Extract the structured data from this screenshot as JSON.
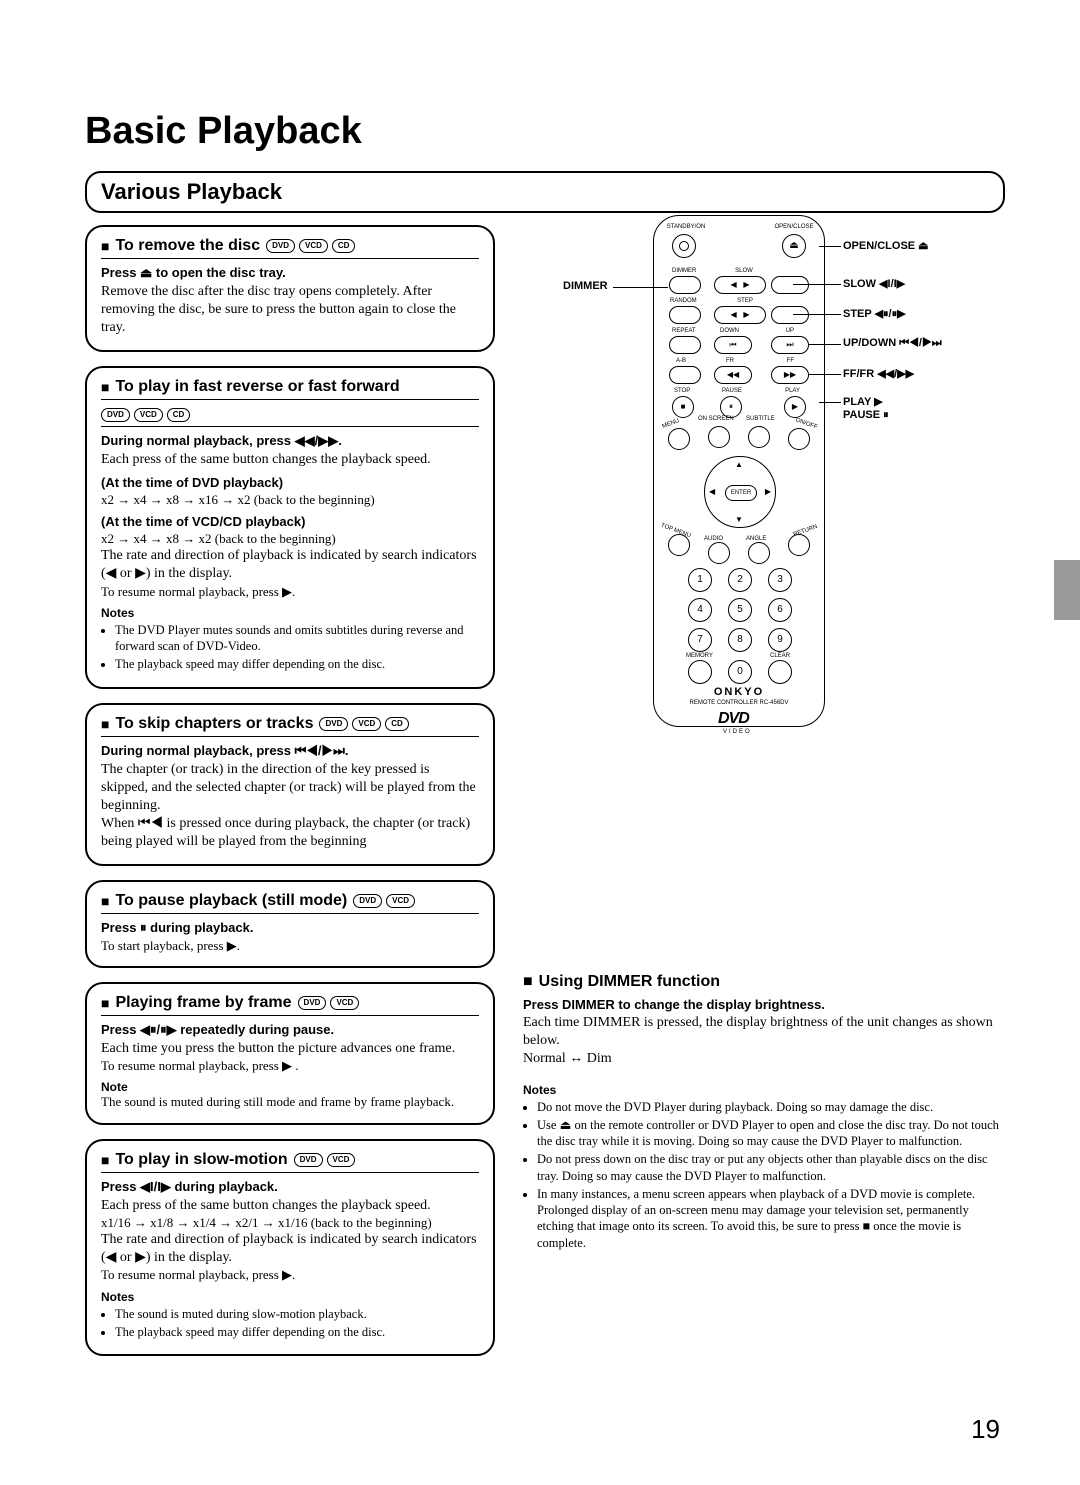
{
  "pageTitle": "Basic Playback",
  "sectionHeader": "Various Playback",
  "pageNumber": "19",
  "discBadges": {
    "dvd": "DVD",
    "vcd": "VCD",
    "cd": "CD"
  },
  "leftSections": [
    {
      "title": "To remove the disc",
      "badges": [
        "DVD",
        "VCD",
        "CD"
      ],
      "blocks": [
        {
          "type": "bold",
          "text": "Press ⏏ to open the disc tray."
        },
        {
          "type": "body",
          "text": "Remove the disc after the disc tray opens completely. After removing the disc, be sure to press the button again to close the tray."
        }
      ]
    },
    {
      "title": "To play in fast reverse or fast forward",
      "badgesBelow": [
        "DVD",
        "VCD",
        "CD"
      ],
      "blocks": [
        {
          "type": "bold",
          "text": "During normal playback, press ◀◀/▶▶."
        },
        {
          "type": "body",
          "text": "Each press of the same button changes the playback speed."
        },
        {
          "type": "bold",
          "text": "(At the time of DVD playback)"
        },
        {
          "type": "small",
          "text": "x2 → x4 → x8 → x16 → x2 (back to the beginning)"
        },
        {
          "type": "bold",
          "text": "(At the time of VCD/CD playback)"
        },
        {
          "type": "small",
          "text": "x2 → x4 → x8 → x2 (back to the beginning)"
        },
        {
          "type": "body",
          "text": "The rate and direction of playback is indicated by search indicators (◀ or ▶) in the display."
        },
        {
          "type": "small",
          "text": "To resume normal playback, press ▶."
        },
        {
          "type": "notesTitle",
          "text": "Notes"
        },
        {
          "type": "notes",
          "items": [
            "The DVD Player mutes sounds and omits subtitles during reverse and forward scan of DVD-Video.",
            "The playback speed may differ depending on the disc."
          ]
        }
      ]
    },
    {
      "title": "To skip chapters or tracks",
      "badges": [
        "DVD",
        "VCD",
        "CD"
      ],
      "blocks": [
        {
          "type": "bold",
          "text": "During normal playback, press ⏮◀/▶⏭."
        },
        {
          "type": "body",
          "text": "The chapter (or track) in the direction of the key pressed is skipped, and the selected chapter (or track) will be played from the beginning."
        },
        {
          "type": "body",
          "text": "When ⏮◀ is pressed once during playback, the chapter (or track) being played will be played from the beginning"
        }
      ]
    },
    {
      "title": "To pause playback (still mode)",
      "badges": [
        "DVD",
        "VCD"
      ],
      "blocks": [
        {
          "type": "bold",
          "text": "Press ⏸ during playback."
        },
        {
          "type": "small",
          "text": "To start playback, press ▶."
        }
      ]
    },
    {
      "title": "Playing frame by frame",
      "badges": [
        "DVD",
        "VCD"
      ],
      "blocks": [
        {
          "type": "bold",
          "text": "Press ◀⏸/⏸▶ repeatedly during pause."
        },
        {
          "type": "body",
          "text": "Each time you press the button the picture advances one frame."
        },
        {
          "type": "small",
          "text": "To resume normal playback, press ▶ ."
        },
        {
          "type": "notesTitle",
          "text": "Note"
        },
        {
          "type": "small",
          "text": "The sound is muted during still mode and frame by frame playback."
        }
      ]
    },
    {
      "title": "To play in slow-motion",
      "badges": [
        "DVD",
        "VCD"
      ],
      "blocks": [
        {
          "type": "bold",
          "text": "Press ◀I/I▶ during playback."
        },
        {
          "type": "body",
          "text": "Each press of the same button changes the playback speed."
        },
        {
          "type": "small",
          "text": "x1/16 → x1/8 → x1/4 → x2/1 → x1/16 (back to the beginning)"
        },
        {
          "type": "body",
          "text": "The rate and direction of playback is indicated by search indicators (◀ or ▶) in the display."
        },
        {
          "type": "small",
          "text": "To resume normal playback, press ▶."
        },
        {
          "type": "notesTitle",
          "text": "Notes"
        },
        {
          "type": "notes",
          "items": [
            "The sound is muted during slow-motion playback.",
            "The playback speed may differ depending on the disc."
          ]
        }
      ]
    }
  ],
  "remote": {
    "brand": "ONKYO",
    "model": "REMOTE CONTROLLER RC-456DV",
    "logo": "DVD",
    "logoSub": "VIDEO",
    "topLabels": {
      "standby": "STANDBY/ON",
      "open": "OPEN/CLOSE",
      "dimmer": "DIMMER",
      "slow": "SLOW",
      "random": "RANDOM",
      "step": "STEP",
      "repeat": "REPEAT",
      "down": "DOWN",
      "up": "UP",
      "ab": "A-B",
      "fr": "FR",
      "ff": "FF",
      "stop": "STOP",
      "pause": "PAUSE",
      "play": "PLAY",
      "menu": "MENU",
      "onscreen": "ON SCREEN",
      "subtitle": "SUBTITLE",
      "onoff": "ON/OFF",
      "topmenu": "TOP MENU",
      "audio": "AUDIO",
      "angle": "ANGLE",
      "return": "RETURN",
      "enter": "ENTER",
      "memory": "MEMORY",
      "clear": "CLEAR"
    },
    "callouts": {
      "openclose": "OPEN/CLOSE ⏏",
      "dimmer": "DIMMER",
      "slow": "SLOW ◀I/I▶",
      "step": "STEP ◀⏸/⏸▶",
      "updown": "UP/DOWN ⏮◀/▶⏭",
      "fffr": "FF/FR ◀◀/▶▶",
      "play": "PLAY ▶",
      "pause": "PAUSE ⏸"
    }
  },
  "right": {
    "heading": "Using DIMMER function",
    "bold": "Press DIMMER to change the display brightness.",
    "body1": "Each time DIMMER is pressed, the display brightness of the unit changes as shown below.",
    "body2": "Normal ↔ Dim",
    "notesTitle": "Notes",
    "notes": [
      "Do not move the DVD Player during playback. Doing so may damage the disc.",
      "Use ⏏ on the remote controller or DVD Player to open and close the disc tray. Do not touch the disc tray while it is moving. Doing so may cause the DVD Player to malfunction.",
      "Do not press down on the disc tray or put any objects other than playable discs on the disc tray. Doing so may cause the DVD Player to malfunction.",
      "In many instances, a menu screen appears when playback of a DVD movie is complete. Prolonged display of an on-screen menu may damage your television set, permanently etching that image onto its screen. To avoid this, be sure to press ■ once the movie is complete."
    ]
  }
}
